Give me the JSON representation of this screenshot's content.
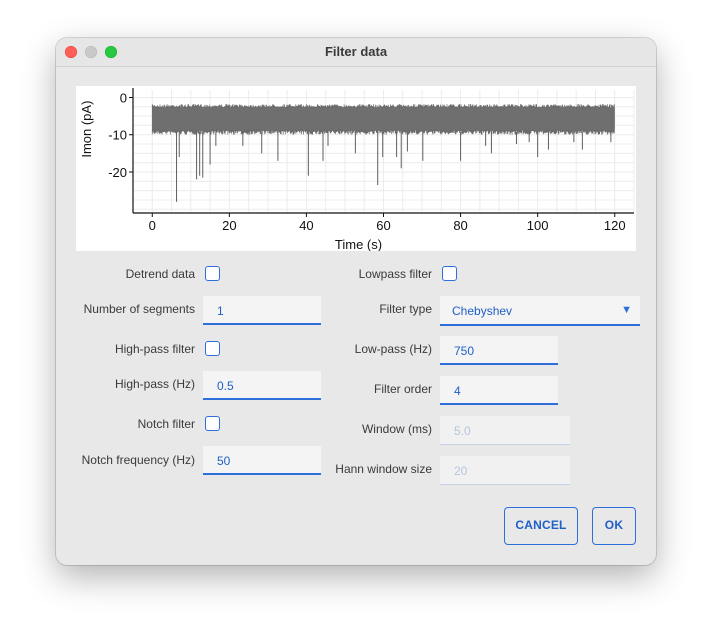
{
  "window": {
    "title": "Filter data"
  },
  "chart_data": {
    "type": "line",
    "xlabel": "Time (s)",
    "ylabel": "Imon (pA)",
    "xlim": [
      -5,
      125
    ],
    "ylim": [
      -31,
      2
    ],
    "x_ticks": [
      0,
      20,
      40,
      60,
      80,
      100,
      120
    ],
    "y_ticks": [
      0,
      -10,
      -20
    ],
    "grid": true,
    "series": [
      {
        "band": {
          "x_start": 0,
          "x_end": 120,
          "y_top": -2.2,
          "y_bottom": -9.2
        },
        "spikes": [
          [
            6.3,
            -28
          ],
          [
            7.0,
            -16
          ],
          [
            11.5,
            -22
          ],
          [
            12.3,
            -21
          ],
          [
            13.1,
            -21.5
          ],
          [
            15.0,
            -18
          ],
          [
            16.5,
            -13
          ],
          [
            23.5,
            -13
          ],
          [
            28.4,
            -15
          ],
          [
            32.6,
            -17
          ],
          [
            40.5,
            -21
          ],
          [
            44.3,
            -17
          ],
          [
            45.6,
            -13
          ],
          [
            52.7,
            -15
          ],
          [
            58.5,
            -23.5
          ],
          [
            59.8,
            -16
          ],
          [
            63.4,
            -16
          ],
          [
            64.6,
            -19
          ],
          [
            66.2,
            -14.5
          ],
          [
            70.2,
            -17
          ],
          [
            80.0,
            -17
          ],
          [
            86.5,
            -13
          ],
          [
            88.0,
            -15
          ],
          [
            94.5,
            -12.5
          ],
          [
            97.8,
            -12
          ],
          [
            100.0,
            -16
          ],
          [
            102.8,
            -14
          ],
          [
            109.4,
            -12
          ],
          [
            111.6,
            -14
          ],
          [
            119.0,
            -12
          ]
        ]
      }
    ]
  },
  "form": {
    "detrend_label": "Detrend data",
    "segments_label": "Number of segments",
    "segments_value": "1",
    "highpass_filter_label": "High-pass filter",
    "highpass_label": "High-pass (Hz)",
    "highpass_value": "0.5",
    "notch_filter_label": "Notch filter",
    "notch_freq_label": "Notch frequency (Hz)",
    "notch_freq_value": "50",
    "lowpass_filter_label": "Lowpass filter",
    "filter_type_label": "Filter type",
    "filter_type_value": "Chebyshev",
    "lowpass_label": "Low-pass (Hz)",
    "lowpass_value": "750",
    "filter_order_label": "Filter order",
    "filter_order_value": "4",
    "window_label": "Window (ms)",
    "window_value": "5.0",
    "hann_label": "Hann window size",
    "hann_value": "20"
  },
  "buttons": {
    "cancel": "CANCEL",
    "ok": "OK"
  },
  "colors": {
    "accent": "#2f6fdc",
    "trace": "#6b6b6b"
  }
}
